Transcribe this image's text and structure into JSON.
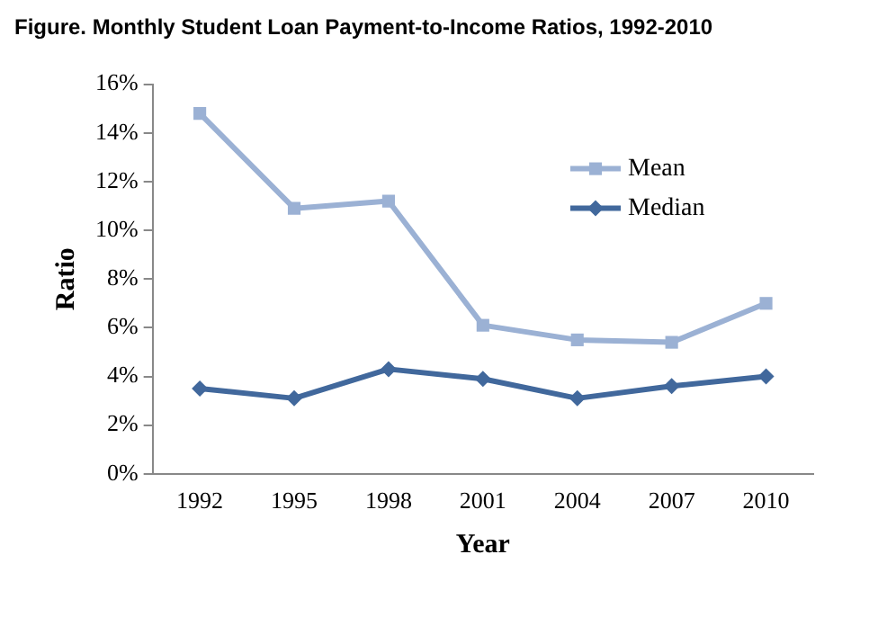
{
  "chart_data": {
    "type": "line",
    "title": "Figure. Monthly Student Loan Payment-to-Income Ratios, 1992-2010",
    "xlabel": "Year",
    "ylabel": "Ratio",
    "categories": [
      "1992",
      "1995",
      "1998",
      "2001",
      "2004",
      "2007",
      "2010"
    ],
    "series": [
      {
        "name": "Mean",
        "color": "#9bb1d4",
        "marker": "square",
        "values": [
          14.8,
          10.9,
          11.2,
          6.1,
          5.5,
          5.4,
          7.0
        ]
      },
      {
        "name": "Median",
        "color": "#41689c",
        "marker": "diamond",
        "values": [
          3.5,
          3.1,
          4.3,
          3.9,
          3.1,
          3.6,
          4.0
        ]
      }
    ],
    "ylim": [
      0,
      16
    ],
    "yticks": [
      {
        "value": 0,
        "label": "0%"
      },
      {
        "value": 2,
        "label": "2%"
      },
      {
        "value": 4,
        "label": "4%"
      },
      {
        "value": 6,
        "label": "6%"
      },
      {
        "value": 8,
        "label": "8%"
      },
      {
        "value": 10,
        "label": "10%"
      },
      {
        "value": 12,
        "label": "12%"
      },
      {
        "value": 14,
        "label": "14%"
      },
      {
        "value": 16,
        "label": "16%"
      }
    ],
    "grid": false,
    "legend": "top right"
  }
}
